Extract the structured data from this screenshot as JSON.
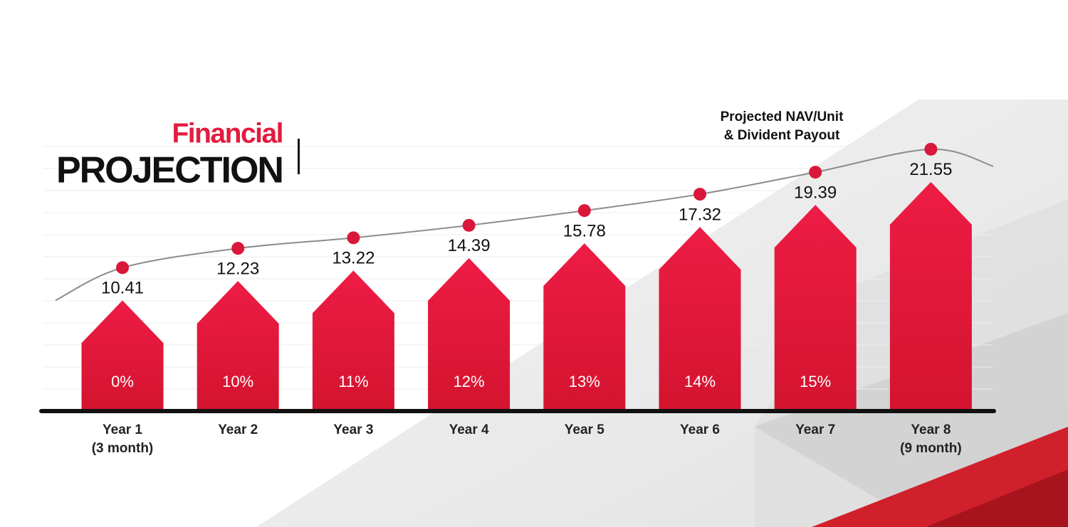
{
  "chart_data": {
    "type": "arrow-bar",
    "title": "Financial",
    "subtitle": "PROJECTION",
    "line_label": [
      "Projected NAV/Unit",
      "& Divident Payout"
    ],
    "categories": [
      [
        "Year 1",
        "(3 month)"
      ],
      [
        "Year 2"
      ],
      [
        "Year 3"
      ],
      [
        "Year 4"
      ],
      [
        "Year 5"
      ],
      [
        "Year 6"
      ],
      [
        "Year 7"
      ],
      [
        "Year 8",
        "(9 month)"
      ]
    ],
    "values": [
      10.41,
      12.23,
      13.22,
      14.39,
      15.78,
      17.32,
      19.39,
      21.55
    ],
    "color": "#e31b3f",
    "line_color": "#8c8c8c",
    "marker_color": "#d9173a",
    "payout": {
      "values": [
        0,
        10,
        11,
        12,
        13,
        14,
        15,
        null
      ],
      "value_labels": [
        "0%",
        "10%",
        "11%",
        "12%",
        "13%",
        "14%",
        "15%",
        null
      ]
    }
  }
}
